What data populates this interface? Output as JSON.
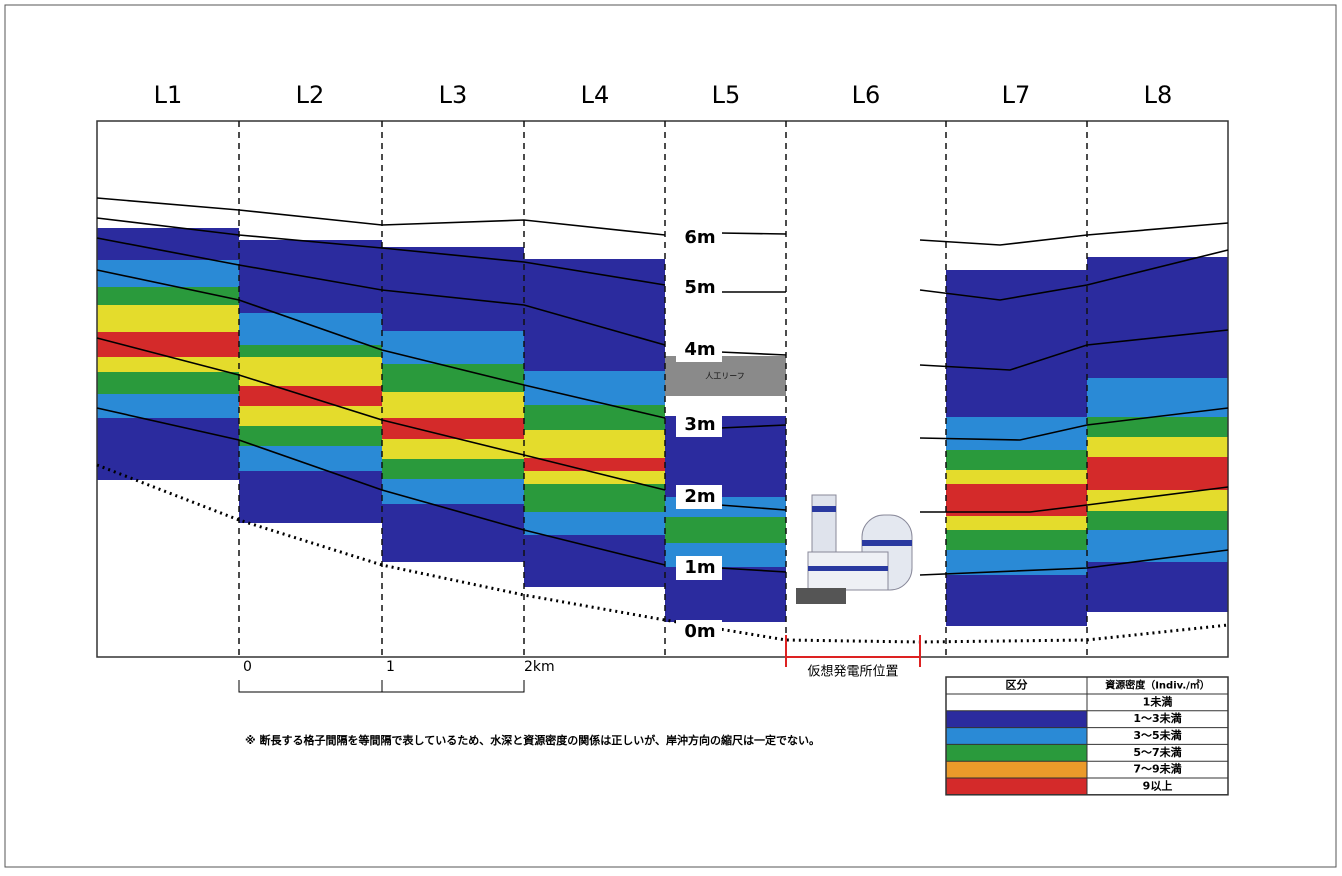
{
  "lines": [
    "L1",
    "L2",
    "L3",
    "L4",
    "L5",
    "L6",
    "L7",
    "L8"
  ],
  "depths": [
    "6m",
    "5m",
    "4m",
    "3m",
    "2m",
    "1m",
    "0m"
  ],
  "scale": [
    "0",
    "1",
    "2km"
  ],
  "site_label": "仮想発電所位置",
  "reef_label": "人工リーフ",
  "note": "※ 断長する格子間隔を等間隔で表しているため、水深と資源密度の関係は正しいが、岸沖方向の縮尺は一定でない。",
  "legend": {
    "header": [
      "区分",
      "資源密度（Indiv./㎡）"
    ],
    "rows": [
      "1未満",
      "1～3未満",
      "3～5未満",
      "5～7未満",
      "7～9未満",
      "9以上"
    ]
  }
}
